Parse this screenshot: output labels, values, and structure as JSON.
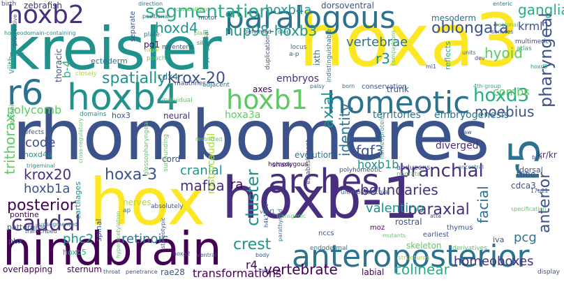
{
  "palette": {
    "dark_purple": "#440154",
    "indigo": "#472f7d",
    "blue": "#3b528b",
    "slate": "#2c728e",
    "teal": "#21918c",
    "green_teal": "#28ae80",
    "green": "#5ec962",
    "lime": "#addc30",
    "yellow": "#fde725"
  },
  "words": [
    {
      "text": "rhombomeres",
      "color": "#3b528b"
    },
    {
      "text": "hox",
      "color": "#fde725"
    },
    {
      "text": "hoxb-1",
      "color": "#472f7d"
    },
    {
      "text": "kreisler",
      "color": "#21918c"
    },
    {
      "text": "hoxa3",
      "color": "#fde725"
    },
    {
      "text": "hindbrain",
      "color": "#440154"
    },
    {
      "text": "anteroposterior",
      "color": "#2c728e"
    },
    {
      "text": "arches",
      "color": "#472f7d"
    },
    {
      "text": "hoxb4",
      "color": "#21918c"
    },
    {
      "text": "paralogous",
      "color": "#2c728e"
    },
    {
      "text": "homeotic",
      "color": "#2c728e"
    },
    {
      "text": "r5",
      "color": "#2c728e"
    },
    {
      "text": "r6",
      "color": "#2c728e"
    },
    {
      "text": "hoxb2",
      "color": "#472f7d"
    },
    {
      "text": "hoxb1",
      "color": "#5ec962"
    },
    {
      "text": "segmentation",
      "color": "#28ae80"
    },
    {
      "text": "nup98-hoxb3",
      "color": "#21918c"
    },
    {
      "text": "hoxb4a",
      "color": "#21918c"
    },
    {
      "text": "hoxd4",
      "color": "#21918c"
    },
    {
      "text": "vertebrae",
      "color": "#2c728e"
    },
    {
      "text": "oblongata",
      "color": "#3b528b"
    },
    {
      "text": "ganglia",
      "color": "#28ae80"
    },
    {
      "text": "krml1",
      "color": "#3b528b"
    },
    {
      "text": "pharyngeal",
      "color": "#3b528b"
    },
    {
      "text": "hyoid",
      "color": "#5ec962"
    },
    {
      "text": "r3",
      "color": "#21918c"
    },
    {
      "text": "hoxd3",
      "color": "#28ae80"
    },
    {
      "text": "combs",
      "color": "#5ec962"
    },
    {
      "text": "anterior",
      "color": "#3b528b"
    },
    {
      "text": "spatially",
      "color": "#21918c"
    },
    {
      "text": "krox-20",
      "color": "#3b528b"
    },
    {
      "text": "polycomb",
      "color": "#5ec962"
    },
    {
      "text": "b-4",
      "color": "#28ae80"
    },
    {
      "text": "code",
      "color": "#3b528b"
    },
    {
      "text": "axial",
      "color": "#21918c"
    },
    {
      "text": "identity",
      "color": "#2c728e"
    },
    {
      "text": "moebius",
      "color": "#3b528b"
    },
    {
      "text": "fgf3",
      "color": "#3b528b"
    },
    {
      "text": "hoxa-3",
      "color": "#3b528b"
    },
    {
      "text": "cranial",
      "color": "#21918c"
    },
    {
      "text": "branchial",
      "color": "#472f7d"
    },
    {
      "text": "krox20",
      "color": "#472f7d"
    },
    {
      "text": "boundaries",
      "color": "#472f7d"
    },
    {
      "text": "hoxb1a",
      "color": "#3b528b"
    },
    {
      "text": "mafba",
      "color": "#472f7d"
    },
    {
      "text": "posterior",
      "color": "#440154"
    },
    {
      "text": "caudal",
      "color": "#472f7d"
    },
    {
      "text": "paraxial",
      "color": "#472f7d"
    },
    {
      "text": "valentino",
      "color": "#21918c"
    },
    {
      "text": "cluster",
      "color": "#21918c"
    },
    {
      "text": "retinoic",
      "color": "#2c728e"
    },
    {
      "text": "phc2",
      "color": "#21918c"
    },
    {
      "text": "crest",
      "color": "#21918c"
    },
    {
      "text": "vertebrate",
      "color": "#440154"
    },
    {
      "text": "homeoboxes",
      "color": "#472f7d"
    },
    {
      "text": "colinear",
      "color": "#28ae80"
    },
    {
      "text": "transformations",
      "color": "#440154"
    },
    {
      "text": "trithorax",
      "color": "#5ec962"
    },
    {
      "text": "hoxa3a",
      "color": "#5ec962"
    },
    {
      "text": "hoxb1b",
      "color": "#21918c"
    },
    {
      "text": "facial",
      "color": "#2c728e"
    },
    {
      "text": "pcg",
      "color": "#2c728e"
    },
    {
      "text": "r4",
      "color": "#440154"
    },
    {
      "text": "embryos",
      "color": "#472f7d"
    },
    {
      "text": "territories",
      "color": "#2c728e"
    },
    {
      "text": "embryogenesis",
      "color": "#2c728e"
    },
    {
      "text": "rostrocaudal",
      "color": "#addc30"
    },
    {
      "text": "ra",
      "color": "#440154"
    },
    {
      "text": "zebrafish",
      "color": "#472f7d"
    },
    {
      "text": "mesoderm",
      "color": "#2c728e"
    },
    {
      "text": "dorsoventral",
      "color": "#3b528b"
    },
    {
      "text": "ectoderm",
      "color": "#2c728e"
    },
    {
      "text": "pg1",
      "color": "#440154"
    },
    {
      "text": "cdx4",
      "color": "#2c728e"
    },
    {
      "text": "axes",
      "color": "#440154"
    },
    {
      "text": "trunk",
      "color": "#3b528b"
    },
    {
      "text": "thoracic",
      "color": "#3b528b"
    },
    {
      "text": "neural",
      "color": "#472f7d"
    },
    {
      "text": "hox3",
      "color": "#3b528b"
    },
    {
      "text": "cord",
      "color": "#3b528b"
    },
    {
      "text": "ixth",
      "color": "#2c728e"
    },
    {
      "text": "viith",
      "color": "#28ae80"
    },
    {
      "text": "sternum",
      "color": "#440154"
    },
    {
      "text": "overlapping",
      "color": "#440154"
    },
    {
      "text": "pbx",
      "color": "#3b528b"
    },
    {
      "text": "hoxb5",
      "color": "#28ae80"
    },
    {
      "text": "pontine",
      "color": "#440154"
    },
    {
      "text": "patterning",
      "color": "#3b528b"
    },
    {
      "text": "hoxd4a",
      "color": "#21918c"
    },
    {
      "text": "evolution",
      "color": "#2c728e"
    },
    {
      "text": "nerves",
      "color": "#addc30"
    },
    {
      "text": "diverged",
      "color": "#472f7d"
    },
    {
      "text": "cdca3",
      "color": "#3b528b"
    },
    {
      "text": "rostral",
      "color": "#3b528b"
    },
    {
      "text": "tube",
      "color": "#3b528b"
    },
    {
      "text": "skeleton",
      "color": "#5ec962"
    },
    {
      "text": "iva",
      "color": "#3b528b"
    },
    {
      "text": "spinal",
      "color": "#3b528b"
    },
    {
      "text": "rae28",
      "color": "#3b528b"
    },
    {
      "text": "labial",
      "color": "#440154"
    },
    {
      "text": "hoxd4",
      "color": "#21918c"
    },
    {
      "text": "homeoproteins",
      "color": "#28ae80"
    },
    {
      "text": "abducens",
      "color": "#3b528b"
    },
    {
      "text": "migrate",
      "color": "#5ec962"
    },
    {
      "text": "dorsal",
      "color": "#3b528b"
    },
    {
      "text": "kr/kr",
      "color": "#472f7d"
    },
    {
      "text": "shark",
      "color": "#472f7d"
    },
    {
      "text": "nccs",
      "color": "#3b528b"
    },
    {
      "text": "moz",
      "color": "#440154"
    },
    {
      "text": "earliest",
      "color": "#3b528b"
    },
    {
      "text": "thymus",
      "color": "#3b528b"
    },
    {
      "text": "display",
      "color": "#3b528b"
    },
    {
      "text": "structures",
      "color": "#addc30"
    },
    {
      "text": "derivatives",
      "color": "#5ec962"
    },
    {
      "text": "endodermal",
      "color": "#2c728e"
    },
    {
      "text": "cartilages",
      "color": "#21918c"
    },
    {
      "text": "conservation",
      "color": "#3b528b"
    },
    {
      "text": "homeodomain-containing",
      "color": "#21918c"
    },
    {
      "text": "mauthner",
      "color": "#3b528b"
    },
    {
      "text": "myenteric",
      "color": "#3b528b"
    },
    {
      "text": "pouch",
      "color": "#5ec962"
    },
    {
      "text": "motor",
      "color": "#3b528b"
    },
    {
      "text": "positional",
      "color": "#2c728e"
    },
    {
      "text": "separate",
      "color": "#3b528b"
    },
    {
      "text": "plate",
      "color": "#2c728e"
    },
    {
      "text": "closely",
      "color": "#addc30"
    },
    {
      "text": "meis",
      "color": "#21918c"
    },
    {
      "text": "ectopic",
      "color": "#28ae80"
    },
    {
      "text": "defects",
      "color": "#3b528b"
    },
    {
      "text": "domains",
      "color": "#21918c"
    },
    {
      "text": "individual",
      "color": "#5ec962"
    },
    {
      "text": "adjacent",
      "color": "#2c728e"
    },
    {
      "text": "hindbrain-neural",
      "color": "#472f7d"
    },
    {
      "text": "cerebellum",
      "color": "#5ec962"
    },
    {
      "text": "direction",
      "color": "#2c728e"
    },
    {
      "text": "birth",
      "color": "#3b528b"
    },
    {
      "text": "enteric",
      "color": "#2c728e"
    },
    {
      "text": "regional",
      "color": "#5ec962"
    },
    {
      "text": "somites",
      "color": "#3b528b"
    },
    {
      "text": "multimeric",
      "color": "#3b528b"
    },
    {
      "text": "atlas",
      "color": "#28ae80"
    },
    {
      "text": "units",
      "color": "#2c728e"
    },
    {
      "text": "dev",
      "color": "#3b528b"
    },
    {
      "text": "hoxd5",
      "color": "#21918c"
    },
    {
      "text": "reflects",
      "color": "#28ae80"
    },
    {
      "text": "4th-group",
      "color": "#28ae80"
    },
    {
      "text": "comparisons",
      "color": "#5ec962"
    },
    {
      "text": "ml1",
      "color": "#3b528b"
    },
    {
      "text": "locus",
      "color": "#2c728e"
    },
    {
      "text": "a-p",
      "color": "#2c728e"
    },
    {
      "text": "duplication",
      "color": "#3b528b"
    },
    {
      "text": "indistinguishable",
      "color": "#2c728e"
    },
    {
      "text": "born",
      "color": "#2c728e"
    },
    {
      "text": "palsy",
      "color": "#2c728e"
    },
    {
      "text": "deformed",
      "color": "#3b528b"
    },
    {
      "text": "plans",
      "color": "#5ec962"
    },
    {
      "text": "silia",
      "color": "#2c728e"
    },
    {
      "text": "hypoglossal",
      "color": "#21918c"
    },
    {
      "text": "dlop",
      "color": "#21918c"
    },
    {
      "text": "restricted",
      "color": "#5ec962"
    },
    {
      "text": "establishment",
      "color": "#3b528b"
    },
    {
      "text": "ultimobranchial",
      "color": "#2c728e"
    },
    {
      "text": "polyhomeotic",
      "color": "#3b528b"
    },
    {
      "text": "homozygous",
      "color": "#440154"
    },
    {
      "text": "absolutely",
      "color": "#3b528b"
    },
    {
      "text": "surrounding",
      "color": "#5ec962"
    },
    {
      "text": "glossopharyngeal",
      "color": "#5ec962"
    },
    {
      "text": "ap",
      "color": "#2c728e"
    },
    {
      "text": "trigeminal",
      "color": "#21918c"
    },
    {
      "text": "transcribed",
      "color": "#3b528b"
    },
    {
      "text": "unsegmented",
      "color": "#2c728e"
    },
    {
      "text": "cross-regulatory",
      "color": "#5ec962"
    },
    {
      "text": "vbcf1",
      "color": "#2c728e"
    },
    {
      "text": "transgenic",
      "color": "#5ec962"
    },
    {
      "text": "h4k16ac",
      "color": "#3b528b"
    },
    {
      "text": "parathyroid",
      "color": "#2c728e"
    },
    {
      "text": "hyperacetylation",
      "color": "#5ec962"
    },
    {
      "text": "stereotypic",
      "color": "#3b528b"
    },
    {
      "text": "hoxa2",
      "color": "#3b528b"
    },
    {
      "text": "ventral",
      "color": "#3b528b"
    },
    {
      "text": "body",
      "color": "#3b528b"
    },
    {
      "text": "locs",
      "color": "#3b528b"
    },
    {
      "text": "penetrance",
      "color": "#3b528b"
    },
    {
      "text": "throat",
      "color": "#3b528b"
    },
    {
      "text": "atta",
      "color": "#3b528b"
    },
    {
      "text": "mutants",
      "color": "#5ec962"
    },
    {
      "text": "ancestral",
      "color": "#2c728e"
    },
    {
      "text": "specification",
      "color": "#5ec962"
    },
    {
      "text": "17q21",
      "color": "#3b528b"
    },
    {
      "text": "bell",
      "color": "#3b528b"
    },
    {
      "text": "jaw",
      "color": "#3b528b"
    },
    {
      "text": "bel",
      "color": "#3b528b"
    },
    {
      "text": "uncommon",
      "color": "#3b528b"
    },
    {
      "text": "vagal",
      "color": "#addc30"
    },
    {
      "text": "procreative",
      "color": "#3b528b"
    }
  ]
}
